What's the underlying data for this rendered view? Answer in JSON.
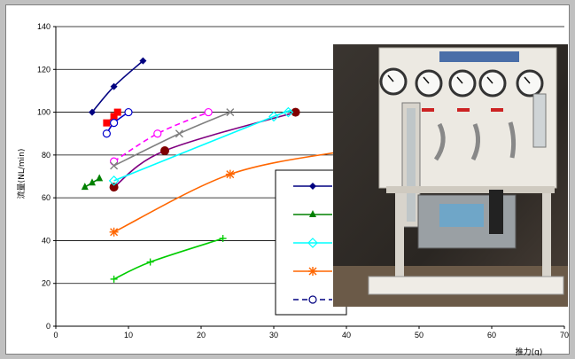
{
  "chart_data": {
    "type": "line",
    "title": "",
    "xlabel": "推力(g)",
    "ylabel": "流量(NL/min)",
    "xlim": [
      0,
      70
    ],
    "ylim": [
      0,
      140
    ],
    "x_ticks": [
      0,
      10,
      20,
      30,
      40,
      50,
      60,
      70
    ],
    "y_ticks": [
      0,
      20,
      40,
      60,
      80,
      100,
      120,
      140
    ],
    "grid": "horizontal",
    "legend_position": "center-right",
    "legend_labels_visible": false,
    "photo_overlay": "test-bench-photo",
    "series": [
      {
        "marker": "diamond-filled",
        "color": "#000080",
        "dashed": false,
        "legend": true,
        "points": [
          [
            5,
            100
          ],
          [
            8,
            112
          ],
          [
            12,
            124
          ]
        ]
      },
      {
        "marker": "triangle-filled",
        "color": "#008000",
        "dashed": false,
        "legend": true,
        "points": [
          [
            4,
            65
          ],
          [
            5,
            67
          ],
          [
            6,
            69
          ]
        ]
      },
      {
        "marker": "square-filled",
        "color": "#ff0000",
        "dashed": false,
        "legend": false,
        "points": [
          [
            7,
            95
          ],
          [
            8,
            98
          ],
          [
            8.5,
            100
          ]
        ]
      },
      {
        "marker": "circle-open",
        "color": "#0000cc",
        "dashed": false,
        "legend": false,
        "points": [
          [
            7,
            90
          ],
          [
            8,
            95
          ],
          [
            10,
            100
          ]
        ]
      },
      {
        "marker": "circle-open",
        "color": "#ff00ff",
        "dashed": true,
        "legend": false,
        "points": [
          [
            8,
            77
          ],
          [
            14,
            90
          ],
          [
            21,
            100
          ]
        ]
      },
      {
        "marker": "x",
        "color": "#808080",
        "dashed": false,
        "legend": false,
        "points": [
          [
            8,
            75
          ],
          [
            17,
            90
          ],
          [
            24,
            100
          ]
        ]
      },
      {
        "marker": "circle-filled",
        "color": "#800000",
        "line_color": "#800080",
        "dashed": false,
        "legend": false,
        "points": [
          [
            8,
            65
          ],
          [
            15,
            82
          ],
          [
            33,
            100
          ]
        ]
      },
      {
        "marker": "diamond-open",
        "color": "#00ffff",
        "dashed": false,
        "legend": true,
        "points": [
          [
            8,
            68
          ],
          [
            30,
            98
          ],
          [
            32,
            100
          ]
        ]
      },
      {
        "marker": "asterisk",
        "color": "#ff6600",
        "dashed": false,
        "legend": true,
        "points": [
          [
            8,
            44
          ],
          [
            24,
            71
          ],
          [
            40,
            82
          ]
        ]
      },
      {
        "marker": "plus",
        "color": "#00cc00",
        "dashed": false,
        "legend": false,
        "points": [
          [
            8,
            22
          ],
          [
            13,
            30
          ],
          [
            23,
            41
          ]
        ]
      },
      {
        "marker": "circle-open",
        "color": "#000080",
        "dashed": true,
        "legend": true,
        "points": []
      }
    ]
  }
}
